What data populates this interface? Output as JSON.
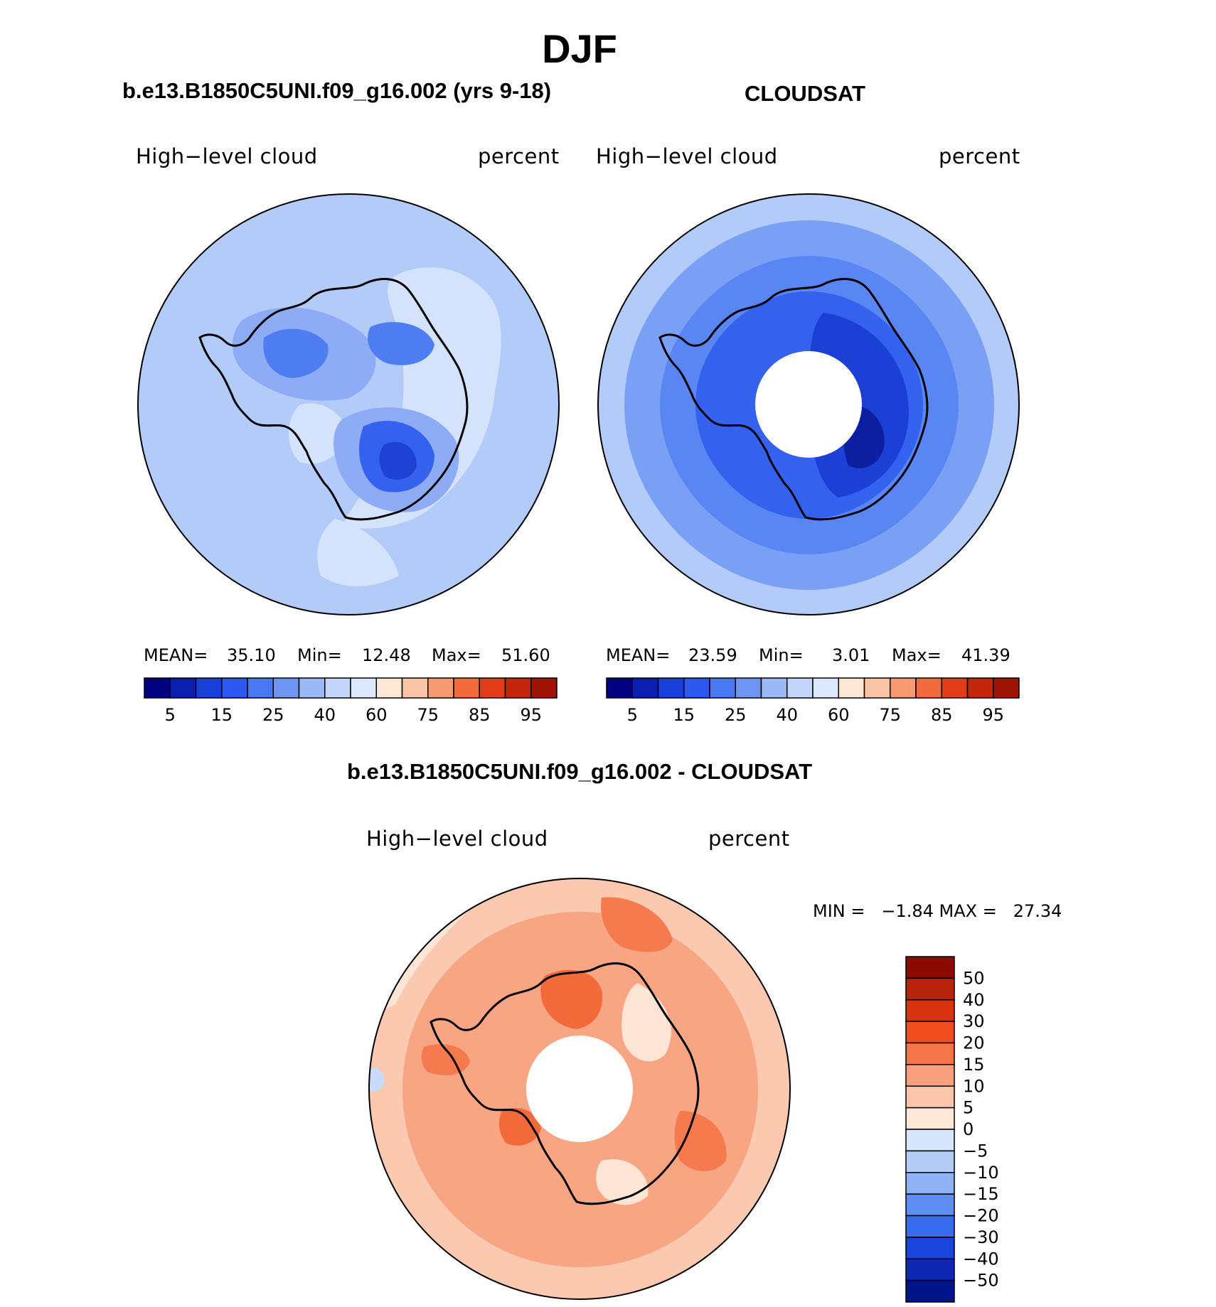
{
  "page": {
    "title": "DJF"
  },
  "panels": [
    {
      "title": "b.e13.B1850C5UNI.f09_g16.002 (yrs 9-18)",
      "variable": "High−level cloud",
      "units": "percent",
      "stats": {
        "mean_label": "MEAN=",
        "mean": "35.10",
        "min_label": "Min=",
        "min": "12.48",
        "max_label": "Max=",
        "max": "51.60"
      }
    },
    {
      "title": "CLOUDSAT",
      "variable": "High−level cloud",
      "units": "percent",
      "stats": {
        "mean_label": "MEAN=",
        "mean": "23.59",
        "min_label": "Min=",
        "min": "3.01",
        "max_label": "Max=",
        "max": "41.39"
      }
    }
  ],
  "diff": {
    "title": "b.e13.B1850C5UNI.f09_g16.002 - CLOUDSAT",
    "variable": "High−level cloud",
    "units": "percent",
    "minmax_text": "MIN =   −1.84 MAX =   27.34"
  },
  "chart_data": [
    {
      "type": "heatmap",
      "projection": "south-polar-stereographic",
      "title": "b.e13.B1850C5UNI.f09_g16.002 (yrs 9-18)",
      "field": "High−level cloud",
      "units": "percent",
      "mean": 35.1,
      "min": 12.48,
      "max": 51.6,
      "colorbar": {
        "orientation": "horizontal",
        "levels": [
          5,
          10,
          15,
          20,
          25,
          30,
          40,
          50,
          60,
          70,
          75,
          80,
          85,
          90,
          95
        ],
        "tick_labels": [
          "5",
          "15",
          "25",
          "40",
          "60",
          "75",
          "85",
          "95"
        ],
        "colors": [
          "#000080",
          "#0a1fb0",
          "#1a3fd8",
          "#2e58f0",
          "#4a77f2",
          "#6f95f4",
          "#9bb8f7",
          "#c3d6fa",
          "#dde9fb",
          "#fde8d6",
          "#fbc3a6",
          "#f79a72",
          "#f16b3e",
          "#e13c17",
          "#c4260c",
          "#9e1404"
        ]
      }
    },
    {
      "type": "heatmap",
      "projection": "south-polar-stereographic",
      "title": "CLOUDSAT",
      "field": "High−level cloud",
      "units": "percent",
      "mean": 23.59,
      "min": 3.01,
      "max": 41.39,
      "colorbar": {
        "orientation": "horizontal",
        "levels": [
          5,
          10,
          15,
          20,
          25,
          30,
          40,
          50,
          60,
          70,
          75,
          80,
          85,
          90,
          95
        ],
        "tick_labels": [
          "5",
          "15",
          "25",
          "40",
          "60",
          "75",
          "85",
          "95"
        ],
        "colors": [
          "#000080",
          "#0a1fb0",
          "#1a3fd8",
          "#2e58f0",
          "#4a77f2",
          "#6f95f4",
          "#9bb8f7",
          "#c3d6fa",
          "#dde9fb",
          "#fde8d6",
          "#fbc3a6",
          "#f79a72",
          "#f16b3e",
          "#e13c17",
          "#c4260c",
          "#9e1404"
        ]
      }
    },
    {
      "type": "heatmap",
      "projection": "south-polar-stereographic",
      "title": "b.e13.B1850C5UNI.f09_g16.002 - CLOUDSAT",
      "field": "High−level cloud",
      "units": "percent",
      "min": -1.84,
      "max": 27.34,
      "colorbar": {
        "orientation": "vertical",
        "levels": [
          50,
          40,
          30,
          20,
          15,
          10,
          5,
          0,
          -5,
          -10,
          -15,
          -20,
          -30,
          -40,
          -50
        ],
        "tick_labels": [
          "50",
          "40",
          "30",
          "20",
          "15",
          "10",
          "5",
          "0",
          "−5",
          "−10",
          "−15",
          "−20",
          "−30",
          "−40",
          "−50"
        ],
        "colors": [
          "#8b0a02",
          "#b8230b",
          "#d8330f",
          "#f04d1f",
          "#f5744a",
          "#f8a07d",
          "#fbc6ac",
          "#fde8d8",
          "#d6e7fb",
          "#b3cdf8",
          "#8fb1f6",
          "#5f8ef4",
          "#3a6cf0",
          "#1a45dc",
          "#0d27b2",
          "#00148a"
        ]
      }
    }
  ]
}
